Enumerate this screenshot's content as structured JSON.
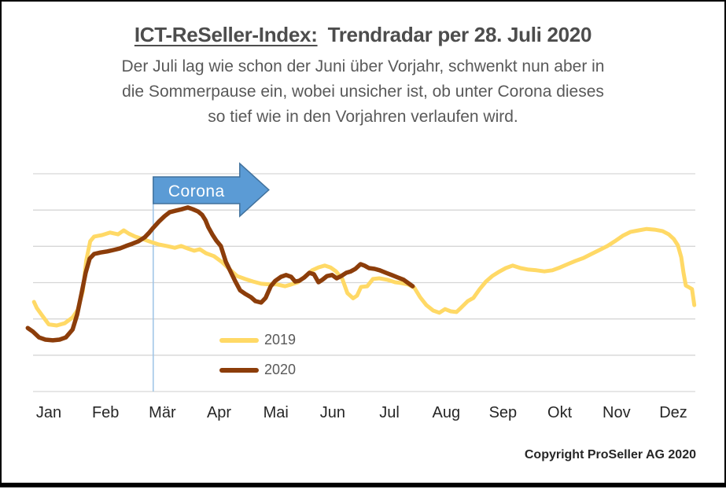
{
  "header": {
    "title_underlined": "ICT-ReSeller-Index:",
    "title_rest": "Trendradar per 28. Juli 2020",
    "subtitle_lines": [
      "Der Juli lag wie schon der Juni über Vorjahr, schwenkt nun aber in",
      "die Sommerpause ein, wobei unsicher ist, ob unter Corona dieses",
      "so tief wie in den Vorjahren verlaufen wird."
    ]
  },
  "footer": {
    "copyright": "Copyright ProSeller AG 2020"
  },
  "colors": {
    "title": "#4d4d4d",
    "subtitle": "#595959",
    "month_label": "#262626",
    "legend_text": "#595959",
    "background": "#ffffff",
    "frame": "#000000"
  },
  "chart_data": {
    "type": "line",
    "title": "ICT-ReSeller-Index Trendradar per 28. Juli 2020",
    "categories": [
      "Jan",
      "Feb",
      "Mär",
      "Apr",
      "Mai",
      "Jun",
      "Jul",
      "Aug",
      "Sep",
      "Okt",
      "Nov",
      "Dez"
    ],
    "x_unit": "month position (1 = mid Jan ... 12 = mid Dez), weekly index data",
    "ylim": [
      0,
      6
    ],
    "y_gridline_step": 1,
    "y_axis_labels": "none",
    "gridline_color": "#d6d6d6",
    "grid": "horizontal only",
    "legend_position": "center-bottom-inside",
    "annotation": {
      "type": "arrow-right",
      "label": "Corona",
      "x": 2.84,
      "fill": "#5b9bd5",
      "border": "#41719c",
      "line_color": "#9dc3e6"
    },
    "series": [
      {
        "name": "2019",
        "color": "#ffd966",
        "width": 5,
        "points": [
          [
            0.74,
            2.47
          ],
          [
            0.79,
            2.3
          ],
          [
            0.89,
            2.08
          ],
          [
            1.0,
            1.85
          ],
          [
            1.14,
            1.82
          ],
          [
            1.28,
            1.88
          ],
          [
            1.42,
            2.04
          ],
          [
            1.51,
            2.25
          ],
          [
            1.6,
            2.77
          ],
          [
            1.66,
            3.6
          ],
          [
            1.73,
            4.14
          ],
          [
            1.8,
            4.27
          ],
          [
            1.94,
            4.31
          ],
          [
            2.08,
            4.38
          ],
          [
            2.22,
            4.33
          ],
          [
            2.32,
            4.44
          ],
          [
            2.41,
            4.35
          ],
          [
            2.52,
            4.27
          ],
          [
            2.66,
            4.2
          ],
          [
            2.8,
            4.12
          ],
          [
            2.94,
            4.05
          ],
          [
            3.08,
            4.01
          ],
          [
            3.22,
            3.96
          ],
          [
            3.33,
            4.01
          ],
          [
            3.45,
            3.94
          ],
          [
            3.56,
            3.88
          ],
          [
            3.66,
            3.92
          ],
          [
            3.77,
            3.81
          ],
          [
            3.91,
            3.73
          ],
          [
            4.05,
            3.57
          ],
          [
            4.19,
            3.36
          ],
          [
            4.32,
            3.18
          ],
          [
            4.46,
            3.1
          ],
          [
            4.6,
            3.03
          ],
          [
            4.74,
            2.97
          ],
          [
            4.88,
            2.95
          ],
          [
            5.02,
            2.95
          ],
          [
            5.16,
            2.9
          ],
          [
            5.27,
            2.95
          ],
          [
            5.39,
            3.01
          ],
          [
            5.52,
            3.18
          ],
          [
            5.64,
            3.34
          ],
          [
            5.75,
            3.42
          ],
          [
            5.86,
            3.47
          ],
          [
            5.96,
            3.42
          ],
          [
            6.06,
            3.31
          ],
          [
            6.17,
            3.1
          ],
          [
            6.26,
            2.71
          ],
          [
            6.36,
            2.57
          ],
          [
            6.43,
            2.64
          ],
          [
            6.5,
            2.88
          ],
          [
            6.61,
            2.9
          ],
          [
            6.71,
            3.1
          ],
          [
            6.82,
            3.12
          ],
          [
            6.96,
            3.08
          ],
          [
            7.1,
            3.01
          ],
          [
            7.21,
            2.99
          ],
          [
            7.33,
            2.95
          ],
          [
            7.44,
            2.86
          ],
          [
            7.54,
            2.6
          ],
          [
            7.65,
            2.38
          ],
          [
            7.77,
            2.23
          ],
          [
            7.88,
            2.17
          ],
          [
            7.98,
            2.27
          ],
          [
            8.08,
            2.21
          ],
          [
            8.18,
            2.19
          ],
          [
            8.27,
            2.32
          ],
          [
            8.38,
            2.49
          ],
          [
            8.48,
            2.58
          ],
          [
            8.59,
            2.82
          ],
          [
            8.7,
            3.03
          ],
          [
            8.81,
            3.18
          ],
          [
            8.92,
            3.29
          ],
          [
            9.05,
            3.4
          ],
          [
            9.17,
            3.47
          ],
          [
            9.31,
            3.4
          ],
          [
            9.45,
            3.36
          ],
          [
            9.59,
            3.34
          ],
          [
            9.73,
            3.31
          ],
          [
            9.87,
            3.34
          ],
          [
            10.01,
            3.42
          ],
          [
            10.14,
            3.51
          ],
          [
            10.28,
            3.6
          ],
          [
            10.42,
            3.68
          ],
          [
            10.56,
            3.79
          ],
          [
            10.7,
            3.9
          ],
          [
            10.84,
            4.01
          ],
          [
            10.97,
            4.14
          ],
          [
            11.11,
            4.29
          ],
          [
            11.25,
            4.4
          ],
          [
            11.39,
            4.44
          ],
          [
            11.53,
            4.48
          ],
          [
            11.67,
            4.46
          ],
          [
            11.81,
            4.42
          ],
          [
            11.92,
            4.33
          ],
          [
            12.01,
            4.2
          ],
          [
            12.08,
            4.03
          ],
          [
            12.14,
            3.7
          ],
          [
            12.18,
            3.27
          ],
          [
            12.22,
            2.92
          ],
          [
            12.29,
            2.86
          ],
          [
            12.33,
            2.82
          ],
          [
            12.37,
            2.38
          ]
        ]
      },
      {
        "name": "2020",
        "color": "#8c3d0a",
        "width": 5.5,
        "points": [
          [
            0.63,
            1.75
          ],
          [
            0.72,
            1.65
          ],
          [
            0.83,
            1.49
          ],
          [
            0.94,
            1.43
          ],
          [
            1.07,
            1.41
          ],
          [
            1.19,
            1.43
          ],
          [
            1.3,
            1.49
          ],
          [
            1.42,
            1.71
          ],
          [
            1.5,
            2.12
          ],
          [
            1.58,
            2.73
          ],
          [
            1.65,
            3.27
          ],
          [
            1.72,
            3.66
          ],
          [
            1.8,
            3.79
          ],
          [
            1.91,
            3.83
          ],
          [
            2.03,
            3.86
          ],
          [
            2.14,
            3.9
          ],
          [
            2.25,
            3.94
          ],
          [
            2.36,
            4.01
          ],
          [
            2.47,
            4.07
          ],
          [
            2.58,
            4.14
          ],
          [
            2.69,
            4.25
          ],
          [
            2.77,
            4.38
          ],
          [
            2.84,
            4.51
          ],
          [
            2.94,
            4.68
          ],
          [
            3.04,
            4.83
          ],
          [
            3.13,
            4.94
          ],
          [
            3.23,
            4.98
          ],
          [
            3.34,
            5.02
          ],
          [
            3.45,
            5.07
          ],
          [
            3.54,
            5.02
          ],
          [
            3.63,
            4.96
          ],
          [
            3.7,
            4.87
          ],
          [
            3.76,
            4.72
          ],
          [
            3.81,
            4.53
          ],
          [
            3.88,
            4.33
          ],
          [
            3.95,
            4.16
          ],
          [
            4.03,
            4.01
          ],
          [
            4.12,
            3.57
          ],
          [
            4.2,
            3.31
          ],
          [
            4.28,
            3.05
          ],
          [
            4.37,
            2.79
          ],
          [
            4.46,
            2.69
          ],
          [
            4.56,
            2.6
          ],
          [
            4.64,
            2.49
          ],
          [
            4.74,
            2.45
          ],
          [
            4.82,
            2.58
          ],
          [
            4.91,
            2.9
          ],
          [
            4.99,
            3.05
          ],
          [
            5.09,
            3.16
          ],
          [
            5.18,
            3.21
          ],
          [
            5.27,
            3.16
          ],
          [
            5.34,
            3.03
          ],
          [
            5.41,
            3.05
          ],
          [
            5.5,
            3.14
          ],
          [
            5.59,
            3.27
          ],
          [
            5.67,
            3.23
          ],
          [
            5.75,
            3.01
          ],
          [
            5.82,
            3.08
          ],
          [
            5.9,
            3.18
          ],
          [
            5.99,
            3.21
          ],
          [
            6.07,
            3.12
          ],
          [
            6.15,
            3.18
          ],
          [
            6.24,
            3.27
          ],
          [
            6.32,
            3.31
          ],
          [
            6.4,
            3.38
          ],
          [
            6.49,
            3.51
          ],
          [
            6.56,
            3.47
          ],
          [
            6.64,
            3.4
          ],
          [
            6.74,
            3.38
          ],
          [
            6.83,
            3.34
          ],
          [
            6.94,
            3.27
          ],
          [
            7.04,
            3.21
          ],
          [
            7.15,
            3.14
          ],
          [
            7.25,
            3.08
          ],
          [
            7.33,
            2.99
          ],
          [
            7.41,
            2.9
          ]
        ]
      }
    ]
  }
}
